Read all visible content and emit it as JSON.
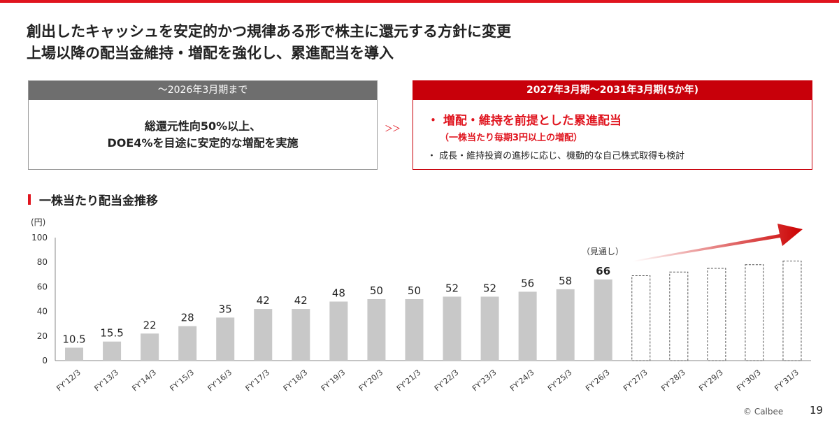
{
  "headline": {
    "line1": "創出したキャッシュを安定的かつ規律ある形で株主に還元する方針に変更",
    "line2": "上場以降の配当金維持・増配を強化し、累進配当を導入"
  },
  "policy_before": {
    "header": "～2026年3月期まで",
    "line1": "総還元性向50%以上、",
    "line2": "DOE4%を目途に安定的な増配を実施"
  },
  "transition_arrow": "＞＞",
  "policy_after": {
    "header": "2027年3月期～2031年3月期(5か年)",
    "bullet1": "・ 増配・維持を前提とした累進配当",
    "bullet1_sub": "（一株当たり毎期3円以上の増配）",
    "bullet2": "・ 成長・維持投資の進捗に応じ、機動的な自己株式取得も検討"
  },
  "section_title": "一株当たり配当金推移",
  "chart_data": {
    "type": "bar",
    "ylabel": "(円)",
    "ylim": [
      0,
      100
    ],
    "yticks": [
      0,
      20,
      40,
      60,
      80,
      100
    ],
    "categories": [
      "FY'12/3",
      "FY'13/3",
      "FY'14/3",
      "FY'15/3",
      "FY'16/3",
      "FY'17/3",
      "FY'18/3",
      "FY'19/3",
      "FY'20/3",
      "FY'21/3",
      "FY'22/3",
      "FY'23/3",
      "FY'24/3",
      "FY'25/3",
      "FY'26/3",
      "FY'27/3",
      "FY'28/3",
      "FY'29/3",
      "FY'30/3",
      "FY'31/3"
    ],
    "values": [
      10.5,
      15.5,
      22,
      28,
      35,
      42,
      42,
      48,
      50,
      50,
      52,
      52,
      56,
      58,
      66,
      69,
      72,
      75,
      78,
      81
    ],
    "labels": [
      "10.5",
      "15.5",
      "22",
      "28",
      "35",
      "42",
      "42",
      "48",
      "50",
      "50",
      "52",
      "52",
      "56",
      "58",
      "66",
      "",
      "",
      "",
      "",
      ""
    ],
    "kind": [
      "actual",
      "actual",
      "actual",
      "actual",
      "actual",
      "actual",
      "actual",
      "actual",
      "actual",
      "actual",
      "actual",
      "actual",
      "actual",
      "actual",
      "forecast",
      "projection",
      "projection",
      "projection",
      "projection",
      "projection"
    ],
    "forecast_note": "（見通し）",
    "grid": false,
    "colors": {
      "bar": "#c8c8c8",
      "projection_outline": "#555555",
      "trend_arrow": "#cc0000",
      "axis": "#888888"
    }
  },
  "footer": {
    "copyright": "© Calbee",
    "page_number": "19"
  }
}
